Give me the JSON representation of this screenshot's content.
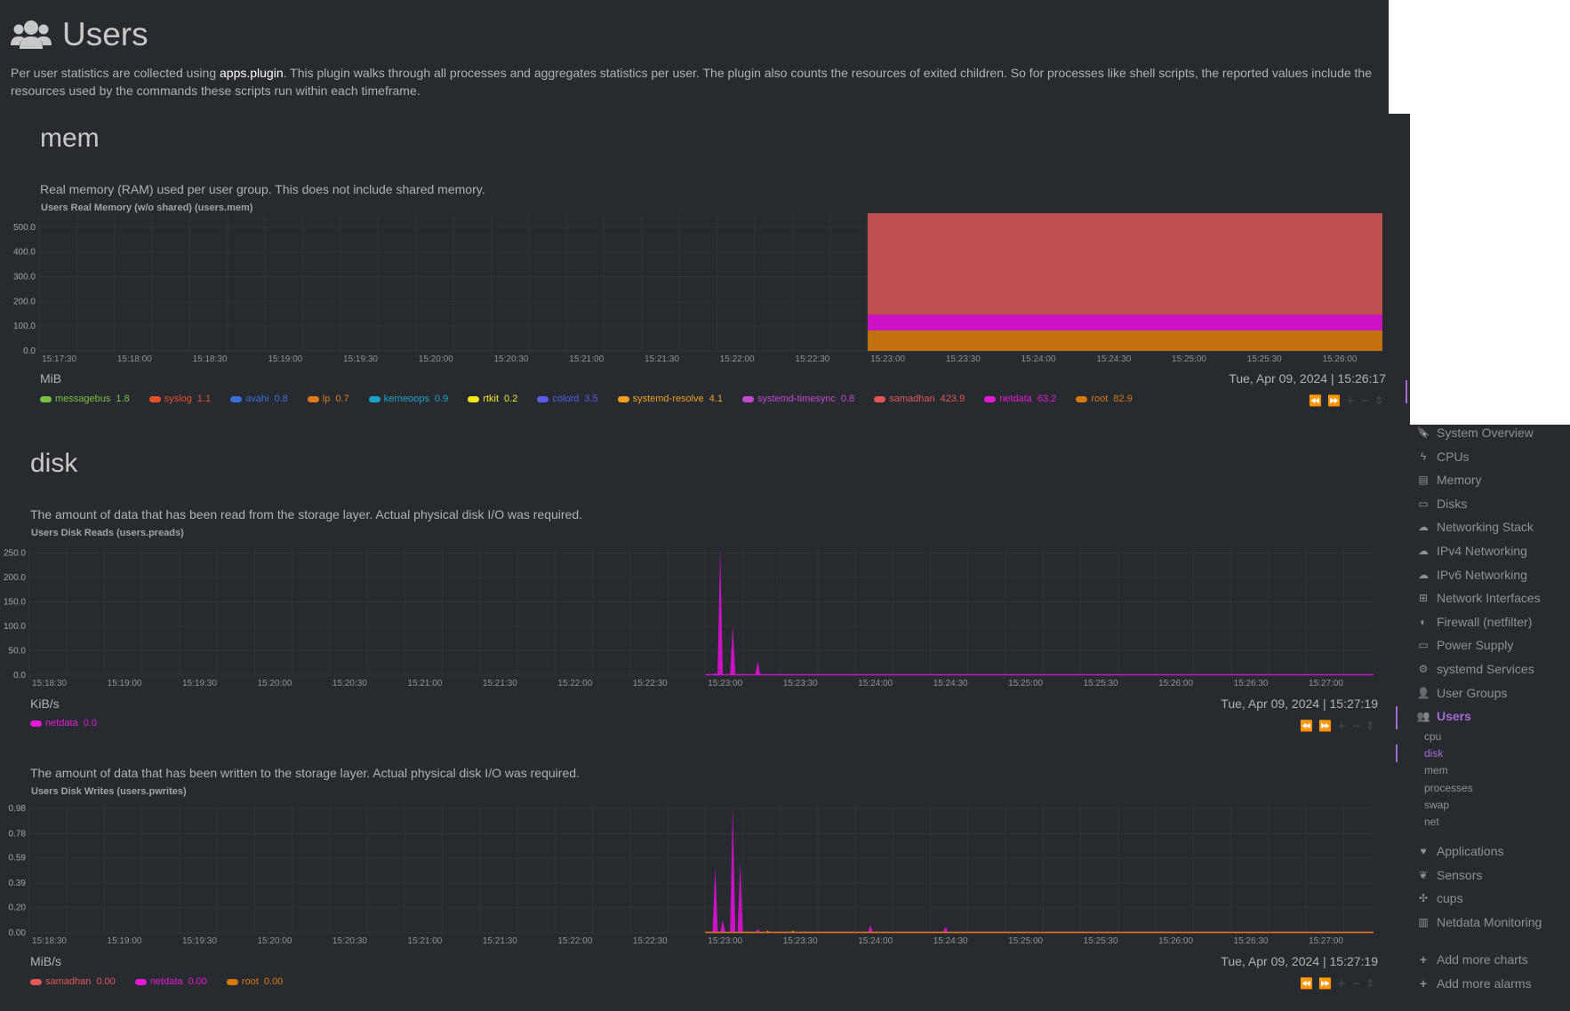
{
  "page": {
    "title": "Users",
    "intro_prefix": "Per user statistics are collected using ",
    "intro_link": "apps.plugin",
    "intro_suffix": ". This plugin walks through all processes and aggregates statistics per user. The plugin also counts the resources of exited children. So for processes like shell scripts, the reported values include the resources used by the commands these scripts run within each timeframe."
  },
  "mem": {
    "heading": "mem",
    "description": "Real memory (RAM) used per user group. This does not include shared memory.",
    "chart_title": "Users Real Memory (w/o shared) (users.mem)",
    "units": "MiB",
    "timestamp": "Tue, Apr 09, 2024 | 15:26:17",
    "legend": [
      {
        "name": "messagebus",
        "value": "1.8",
        "color": "#7ac142"
      },
      {
        "name": "syslog",
        "value": "1.1",
        "color": "#e8502a"
      },
      {
        "name": "avahi",
        "value": "0.8",
        "color": "#3a6fd8"
      },
      {
        "name": "lp",
        "value": "0.7",
        "color": "#e07b1a"
      },
      {
        "name": "kerneoops",
        "value": "0.9",
        "color": "#1ba3c7"
      },
      {
        "name": "rtkit",
        "value": "0.2",
        "color": "#f2e81e"
      },
      {
        "name": "colord",
        "value": "3.5",
        "color": "#5b5be6"
      },
      {
        "name": "systemd-resolve",
        "value": "4.1",
        "color": "#f0a01c"
      },
      {
        "name": "systemd-timesync",
        "value": "0.8",
        "color": "#c347d0"
      },
      {
        "name": "samadhan",
        "value": "423.9",
        "color": "#e25858"
      },
      {
        "name": "netdata",
        "value": "63.2",
        "color": "#e61ad6"
      },
      {
        "name": "root",
        "value": "82.9",
        "color": "#d67a0e"
      }
    ]
  },
  "disk": {
    "heading": "disk",
    "reads_description": "The amount of data that has been read from the storage layer. Actual physical disk I/O was required.",
    "reads_title": "Users Disk Reads (users.preads)",
    "reads_units": "KiB/s",
    "reads_timestamp": "Tue, Apr 09, 2024 | 15:27:19",
    "reads_legend": [
      {
        "name": "netdata",
        "value": "0.0",
        "color": "#e61ad6"
      }
    ],
    "writes_description": "The amount of data that has been written to the storage layer. Actual physical disk I/O was required.",
    "writes_title": "Users Disk Writes (users.pwrites)",
    "writes_units": "MiB/s",
    "writes_timestamp": "Tue, Apr 09, 2024 | 15:27:19",
    "writes_legend": [
      {
        "name": "samadhan",
        "value": "0.00",
        "color": "#e25858"
      },
      {
        "name": "netdata",
        "value": "0.00",
        "color": "#e61ad6"
      },
      {
        "name": "root",
        "value": "0.00",
        "color": "#d67a0e"
      }
    ]
  },
  "nav_controls": [
    "⏪",
    "⏩",
    "+",
    "−",
    "⇕"
  ],
  "sidebar": {
    "items": [
      {
        "label": "System Overview",
        "icon": "bookmark-icon"
      },
      {
        "label": "CPUs",
        "icon": "bolt-icon"
      },
      {
        "label": "Memory",
        "icon": "memory-icon"
      },
      {
        "label": "Disks",
        "icon": "hdd-icon"
      },
      {
        "label": "Networking Stack",
        "icon": "cloud-icon"
      },
      {
        "label": "IPv4 Networking",
        "icon": "cloud-icon"
      },
      {
        "label": "IPv6 Networking",
        "icon": "cloud-icon"
      },
      {
        "label": "Network Interfaces",
        "icon": "sitemap-icon"
      },
      {
        "label": "Firewall (netfilter)",
        "icon": "shield-icon"
      },
      {
        "label": "Power Supply",
        "icon": "battery-icon"
      },
      {
        "label": "systemd Services",
        "icon": "cogs-icon"
      },
      {
        "label": "User Groups",
        "icon": "user-icon"
      },
      {
        "label": "Users",
        "icon": "users-icon",
        "active": true
      }
    ],
    "subitems": [
      {
        "label": "cpu"
      },
      {
        "label": "disk",
        "active": true
      },
      {
        "label": "mem"
      },
      {
        "label": "processes"
      },
      {
        "label": "swap"
      },
      {
        "label": "net"
      }
    ],
    "items2": [
      {
        "label": "Applications",
        "icon": "heartbeat-icon"
      },
      {
        "label": "Sensors",
        "icon": "leaf-icon"
      },
      {
        "label": "cups",
        "icon": "puzzle-icon"
      },
      {
        "label": "Netdata Monitoring",
        "icon": "bar-chart-icon"
      }
    ],
    "actions": [
      {
        "label": "Add more charts"
      },
      {
        "label": "Add more alarms"
      }
    ]
  },
  "chart_data": [
    {
      "type": "area",
      "title": "Users Real Memory (w/o shared) (users.mem)",
      "ylabel": "MiB",
      "ylim": [
        0,
        550
      ],
      "yticks": [
        "500.0",
        "400.0",
        "300.0",
        "200.0",
        "100.0",
        "0.0"
      ],
      "x_ticks": [
        "15:17:30",
        "15:18:00",
        "15:18:30",
        "15:19:00",
        "15:19:30",
        "15:20:00",
        "15:20:30",
        "15:21:00",
        "15:21:30",
        "15:22:00",
        "15:22:30",
        "15:23:00",
        "15:23:30",
        "15:24:00",
        "15:24:30",
        "15:25:00",
        "15:25:30",
        "15:26:00"
      ],
      "data_start": "15:22:52",
      "series": [
        {
          "name": "root",
          "value": 82.9
        },
        {
          "name": "netdata",
          "value": 63.2
        },
        {
          "name": "samadhan",
          "value": 423.9
        },
        {
          "name": "others",
          "value": 13.6
        }
      ]
    },
    {
      "type": "area",
      "title": "Users Disk Reads (users.preads)",
      "ylabel": "KiB/s",
      "ylim": [
        0,
        260
      ],
      "yticks": [
        "250.0",
        "200.0",
        "150.0",
        "100.0",
        "50.0",
        "0.0"
      ],
      "x_ticks": [
        "15:18:30",
        "15:19:00",
        "15:19:30",
        "15:20:00",
        "15:20:30",
        "15:21:00",
        "15:21:30",
        "15:22:00",
        "15:22:30",
        "15:23:00",
        "15:23:30",
        "15:24:00",
        "15:24:30",
        "15:25:00",
        "15:25:30",
        "15:26:00",
        "15:26:30",
        "15:27:00"
      ],
      "series": [
        {
          "name": "netdata",
          "peaks": [
            {
              "t": "15:22:56",
              "v": 5
            },
            {
              "t": "15:22:58",
              "v": 258
            },
            {
              "t": "15:23:03",
              "v": 100
            },
            {
              "t": "15:23:13",
              "v": 28
            }
          ]
        }
      ]
    },
    {
      "type": "area",
      "title": "Users Disk Writes (users.pwrites)",
      "ylabel": "MiB/s",
      "ylim": [
        0,
        1.0
      ],
      "yticks": [
        "0.98",
        "0.78",
        "0.59",
        "0.39",
        "0.20",
        "0.00"
      ],
      "x_ticks": [
        "15:18:30",
        "15:19:00",
        "15:19:30",
        "15:20:00",
        "15:20:30",
        "15:21:00",
        "15:21:30",
        "15:22:00",
        "15:22:30",
        "15:23:00",
        "15:23:30",
        "15:24:00",
        "15:24:30",
        "15:25:00",
        "15:25:30",
        "15:26:00",
        "15:26:30",
        "15:27:00"
      ],
      "series": [
        {
          "name": "netdata",
          "peaks": [
            {
              "t": "15:22:56",
              "v": 0.52
            },
            {
              "t": "15:22:59",
              "v": 0.1
            },
            {
              "t": "15:23:03",
              "v": 0.98
            },
            {
              "t": "15:23:06",
              "v": 0.55
            },
            {
              "t": "15:23:13",
              "v": 0.03
            },
            {
              "t": "15:23:58",
              "v": 0.06
            },
            {
              "t": "15:24:28",
              "v": 0.05
            }
          ]
        },
        {
          "name": "root",
          "peaks": [
            {
              "t": "15:23:17",
              "v": 0.02
            },
            {
              "t": "15:23:27",
              "v": 0.02
            },
            {
              "t": "15:27:10",
              "v": 0.01
            }
          ]
        }
      ]
    }
  ]
}
